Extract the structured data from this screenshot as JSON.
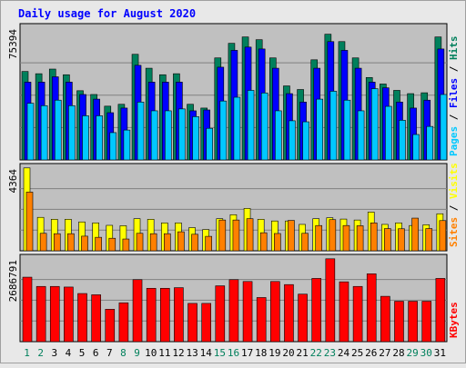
{
  "chart_data": {
    "type": "bar",
    "title": "Daily usage for August 2020",
    "categories": [
      "1",
      "2",
      "3",
      "4",
      "5",
      "6",
      "7",
      "8",
      "9",
      "10",
      "11",
      "12",
      "13",
      "14",
      "15",
      "16",
      "17",
      "18",
      "19",
      "20",
      "21",
      "22",
      "23",
      "24",
      "25",
      "26",
      "27",
      "28",
      "29",
      "30",
      "31"
    ],
    "weekend_days": [
      "1",
      "2",
      "8",
      "9",
      "15",
      "16",
      "22",
      "23",
      "29",
      "30"
    ],
    "panels": [
      {
        "id": "top",
        "ymax_label": "75394",
        "ymax": 75394,
        "right_label_parts": [
          {
            "text": "Pages",
            "color": "#00c8ff"
          },
          {
            "text": " / ",
            "color": "#000000"
          },
          {
            "text": "Files",
            "color": "#0000ff"
          },
          {
            "text": " / ",
            "color": "#000000"
          },
          {
            "text": "Hits",
            "color": "#00805c"
          }
        ],
        "series": [
          {
            "name": "Hits",
            "color": "#00805c",
            "values": [
              51500,
              50200,
              52900,
              49600,
              40300,
              38100,
              31300,
              32400,
              61500,
              53400,
              49600,
              50200,
              32400,
              30200,
              59400,
              67900,
              71600,
              70000,
              59400,
              43100,
              41000,
              58300,
              73200,
              68900,
              59400,
              48000,
              44200,
              40500,
              38600,
              39100,
              71600
            ]
          },
          {
            "name": "Files",
            "color": "#0000ff",
            "values": [
              45300,
              45300,
              48400,
              45300,
              38100,
              35400,
              27500,
              30200,
              55100,
              45300,
              45300,
              45300,
              28600,
              29100,
              54000,
              63800,
              65700,
              64600,
              53400,
              38600,
              33700,
              53400,
              68900,
              63800,
              53400,
              45300,
              42000,
              33700,
              30200,
              34800,
              64600
            ]
          },
          {
            "name": "Pages",
            "color": "#00c8ff",
            "values": [
              33000,
              31600,
              34800,
              31600,
              25700,
              25700,
              15900,
              17400,
              33700,
              28600,
              28600,
              29700,
              25200,
              18400,
              34300,
              36500,
              40500,
              39000,
              28600,
              22800,
              22200,
              35400,
              40000,
              34800,
              28600,
              41500,
              31200,
              23100,
              14800,
              19500,
              38100
            ]
          }
        ]
      },
      {
        "id": "middle",
        "ymax_label": "4364",
        "ymax": 4364,
        "right_label_parts": [
          {
            "text": "Sites",
            "color": "#ff8000"
          },
          {
            "text": " / ",
            "color": "#000000"
          },
          {
            "text": "Visits",
            "color": "#ffff00"
          }
        ],
        "series": [
          {
            "name": "Visits",
            "color": "#ffff00",
            "values": [
              4364,
              1760,
              1660,
              1660,
              1520,
              1470,
              1340,
              1320,
              1690,
              1660,
              1470,
              1470,
              1220,
              1120,
              1690,
              1900,
              2230,
              1660,
              1570,
              1570,
              1390,
              1690,
              1740,
              1670,
              1620,
              2040,
              1390,
              1470,
              1330,
              1370,
              1950
            ]
          },
          {
            "name": "Sites",
            "color": "#ff8000",
            "values": [
              3090,
              920,
              900,
              900,
              770,
              710,
              660,
              620,
              920,
              900,
              900,
              1000,
              870,
              760,
              1620,
              1620,
              1690,
              950,
              910,
              1600,
              920,
              1330,
              1640,
              1330,
              1320,
              1470,
              1170,
              1160,
              1720,
              1170,
              1590
            ]
          }
        ]
      },
      {
        "id": "bottom",
        "ymax_label": "2686791",
        "ymax": 2686791,
        "right_label_parts": [
          {
            "text": "KBytes",
            "color": "#ff0000"
          }
        ],
        "series": [
          {
            "name": "KBytes",
            "color": "#ff0000",
            "values": [
              2090000,
              1790000,
              1790000,
              1770000,
              1560000,
              1520000,
              1050000,
              1260000,
              2010000,
              1730000,
              1730000,
              1750000,
              1240000,
              1240000,
              1810000,
              2010000,
              1950000,
              1430000,
              1950000,
              1850000,
              1540000,
              2050000,
              2686791,
              1940000,
              1790000,
              2200000,
              1470000,
              1310000,
              1310000,
              1310000,
              2050000
            ]
          }
        ]
      }
    ]
  }
}
